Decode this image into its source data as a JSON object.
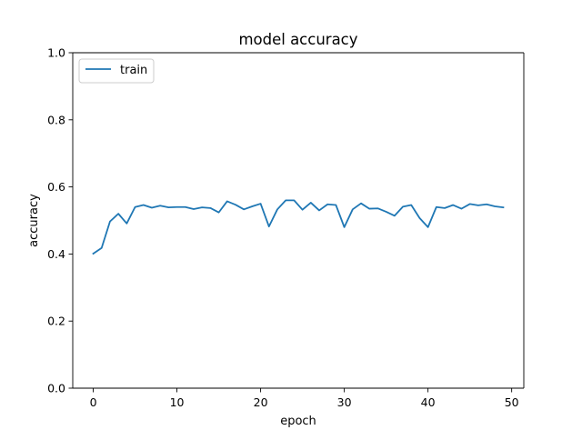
{
  "chart_data": {
    "type": "line",
    "title": "model accuracy",
    "xlabel": "epoch",
    "ylabel": "accuracy",
    "xlim": [
      -2.45,
      51.45
    ],
    "ylim": [
      0.0,
      1.0
    ],
    "xticks": [
      0,
      10,
      20,
      30,
      40,
      50
    ],
    "yticks": [
      0.0,
      0.2,
      0.4,
      0.6,
      0.8,
      1.0
    ],
    "xtick_labels": [
      "0",
      "10",
      "20",
      "30",
      "40",
      "50"
    ],
    "ytick_labels": [
      "0.0",
      "0.2",
      "0.4",
      "0.6",
      "0.8",
      "1.0"
    ],
    "grid": false,
    "legend": {
      "position": "top-left",
      "entries": [
        "train"
      ]
    },
    "series": [
      {
        "name": "train",
        "color": "#1f77b4",
        "x": [
          0,
          1,
          2,
          3,
          4,
          5,
          6,
          7,
          8,
          9,
          10,
          11,
          12,
          13,
          14,
          15,
          16,
          17,
          18,
          19,
          20,
          21,
          22,
          23,
          24,
          25,
          26,
          27,
          28,
          29,
          30,
          31,
          32,
          33,
          34,
          35,
          36,
          37,
          38,
          39,
          40,
          41,
          42,
          43,
          44,
          45,
          46,
          47,
          48,
          49
        ],
        "values": [
          0.401,
          0.418,
          0.497,
          0.52,
          0.491,
          0.54,
          0.546,
          0.538,
          0.544,
          0.539,
          0.54,
          0.54,
          0.534,
          0.539,
          0.537,
          0.524,
          0.557,
          0.547,
          0.533,
          0.542,
          0.55,
          0.482,
          0.533,
          0.56,
          0.56,
          0.532,
          0.553,
          0.53,
          0.548,
          0.546,
          0.48,
          0.533,
          0.551,
          0.535,
          0.536,
          0.526,
          0.514,
          0.541,
          0.546,
          0.507,
          0.48,
          0.54,
          0.537,
          0.546,
          0.535,
          0.549,
          0.545,
          0.548,
          0.542,
          0.539
        ]
      }
    ]
  }
}
